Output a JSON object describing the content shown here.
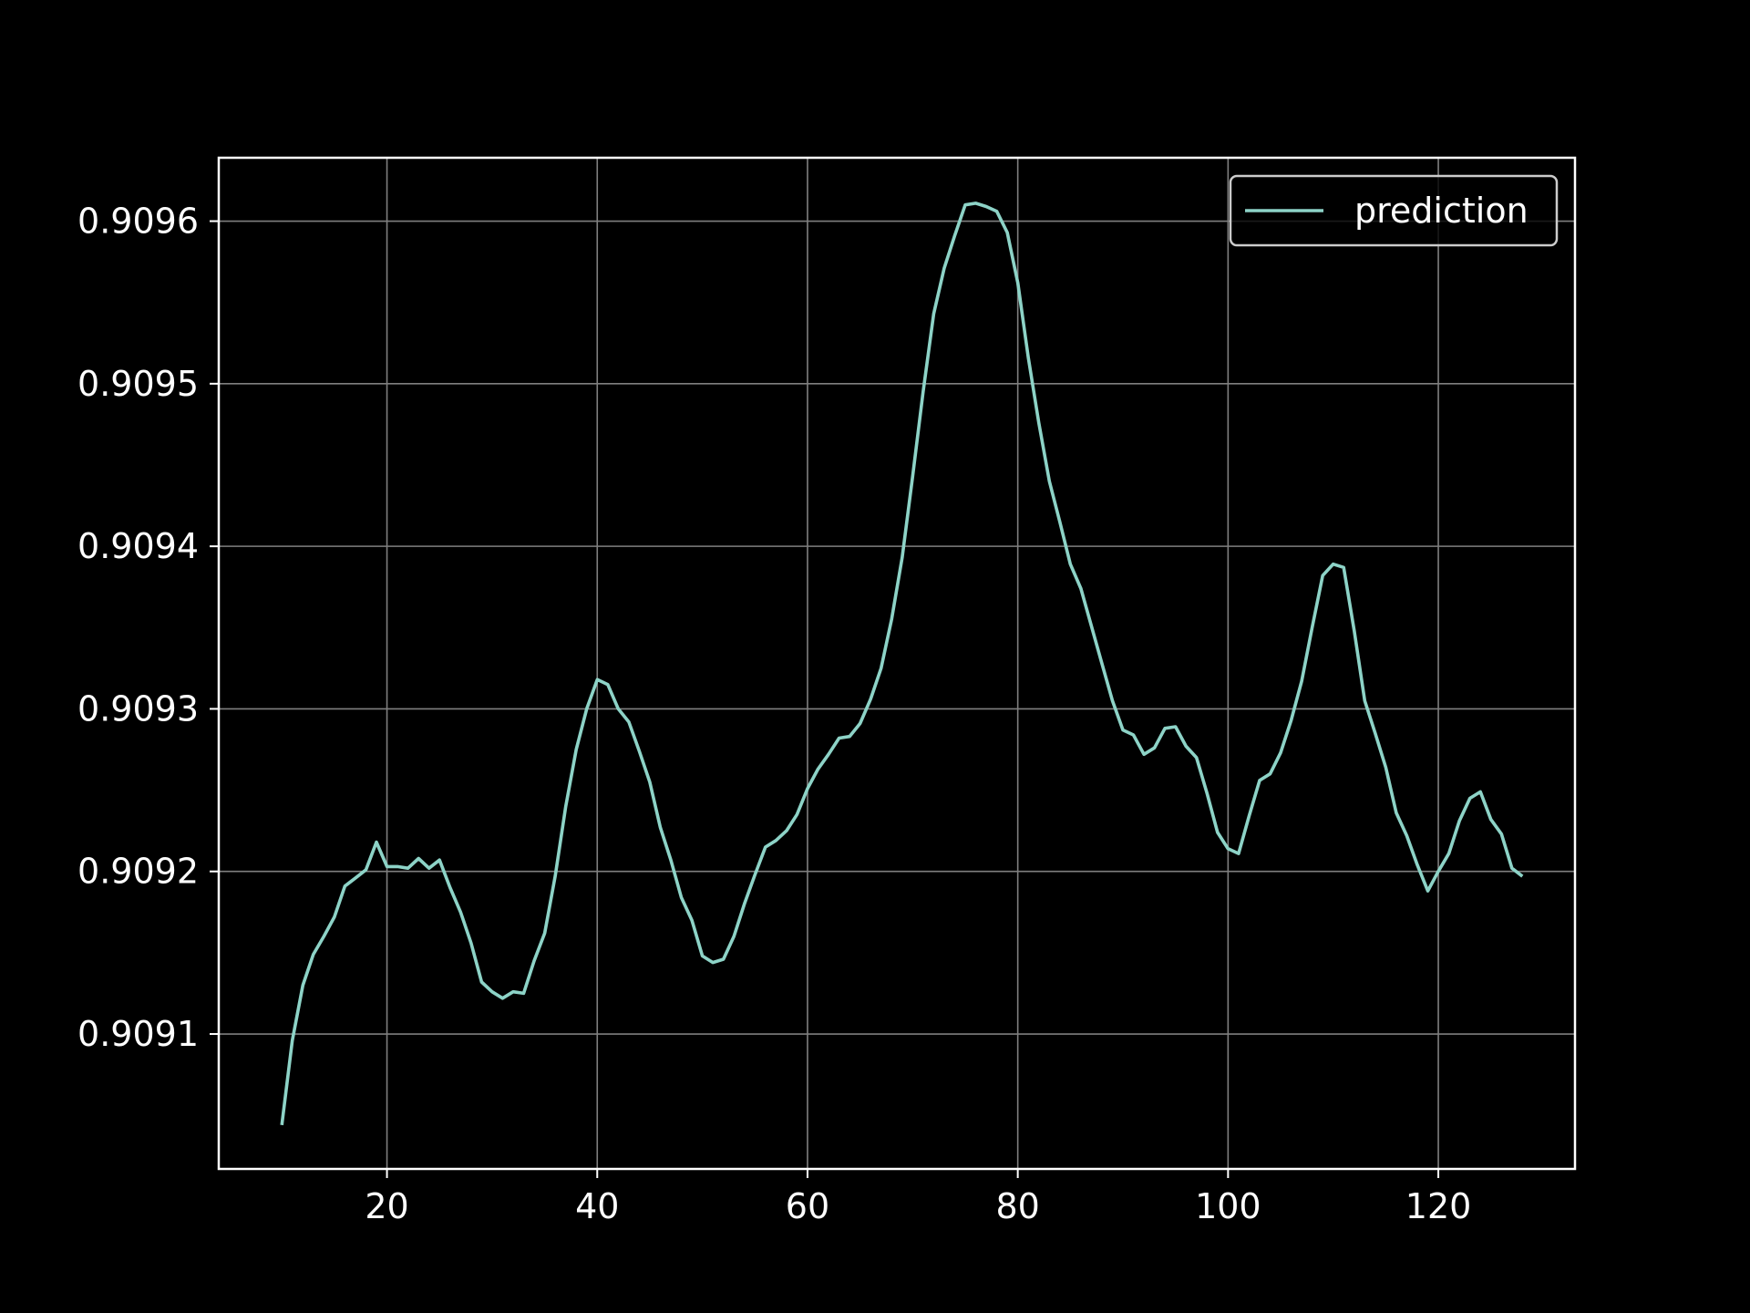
{
  "chart_data": {
    "type": "line",
    "title": "",
    "xlabel": "",
    "ylabel": "",
    "xlim": [
      4,
      133
    ],
    "ylim": [
      0.909017,
      0.909639
    ],
    "xticks": [
      20,
      40,
      60,
      80,
      100,
      120
    ],
    "xtick_labels": [
      "20",
      "40",
      "60",
      "80",
      "100",
      "120"
    ],
    "yticks": [
      0.9091,
      0.9092,
      0.9093,
      0.9094,
      0.9095,
      0.9096
    ],
    "ytick_labels": [
      "0.9091",
      "0.9092",
      "0.9093",
      "0.9094",
      "0.9095",
      "0.9096"
    ],
    "grid": true,
    "legend_position": "top-right",
    "background": "#000000",
    "series": [
      {
        "name": "prediction",
        "color": "#8dd3c7",
        "x": [
          10,
          11,
          12,
          13,
          14,
          15,
          16,
          17,
          18,
          19,
          20,
          21,
          22,
          23,
          24,
          25,
          26,
          27,
          28,
          29,
          30,
          31,
          32,
          33,
          34,
          35,
          36,
          37,
          38,
          39,
          40,
          41,
          42,
          43,
          44,
          45,
          46,
          47,
          48,
          49,
          50,
          51,
          52,
          53,
          54,
          55,
          56,
          57,
          58,
          59,
          60,
          61,
          62,
          63,
          64,
          65,
          66,
          67,
          68,
          69,
          70,
          71,
          72,
          73,
          74,
          75,
          76,
          77,
          78,
          79,
          80,
          81,
          82,
          83,
          84,
          85,
          86,
          87,
          88,
          89,
          90,
          91,
          92,
          93,
          94,
          95,
          96,
          97,
          98,
          99,
          100,
          101,
          102,
          103,
          104,
          105,
          106,
          107,
          108,
          109,
          110,
          111,
          112,
          113,
          114,
          115,
          116,
          117,
          118,
          119,
          120,
          121,
          122,
          123,
          124,
          125,
          126,
          127,
          128
        ],
        "y": [
          0.909044,
          0.909096,
          0.90913,
          0.909149,
          0.90916,
          0.909172,
          0.909191,
          0.909196,
          0.909201,
          0.909218,
          0.909203,
          0.909203,
          0.909202,
          0.909208,
          0.909202,
          0.909207,
          0.90919,
          0.909175,
          0.909156,
          0.909132,
          0.909126,
          0.909122,
          0.909126,
          0.909125,
          0.909145,
          0.909162,
          0.909197,
          0.90924,
          0.909275,
          0.9093,
          0.909318,
          0.909315,
          0.9093,
          0.909292,
          0.909274,
          0.909255,
          0.909227,
          0.909207,
          0.909184,
          0.90917,
          0.909148,
          0.909144,
          0.909146,
          0.90916,
          0.90918,
          0.909198,
          0.909215,
          0.909219,
          0.909225,
          0.909235,
          0.909251,
          0.909263,
          0.909272,
          0.909282,
          0.909283,
          0.909291,
          0.909306,
          0.909325,
          0.909355,
          0.909393,
          0.909443,
          0.909495,
          0.909543,
          0.909571,
          0.909591,
          0.90961,
          0.909611,
          0.909609,
          0.909606,
          0.909593,
          0.909562,
          0.909516,
          0.909476,
          0.90944,
          0.909415,
          0.909389,
          0.909374,
          0.909351,
          0.909328,
          0.909305,
          0.909287,
          0.909284,
          0.909272,
          0.909276,
          0.909288,
          0.909289,
          0.909277,
          0.90927,
          0.909248,
          0.909224,
          0.909214,
          0.909211,
          0.909234,
          0.909256,
          0.90926,
          0.909273,
          0.909293,
          0.909317,
          0.90935,
          0.909382,
          0.909389,
          0.909387,
          0.909348,
          0.909305,
          0.909285,
          0.909264,
          0.909236,
          0.909222,
          0.909204,
          0.909188,
          0.9092,
          0.909211,
          0.909231,
          0.909245,
          0.909249,
          0.909232,
          0.909223,
          0.909202,
          0.909197
        ]
      }
    ]
  }
}
